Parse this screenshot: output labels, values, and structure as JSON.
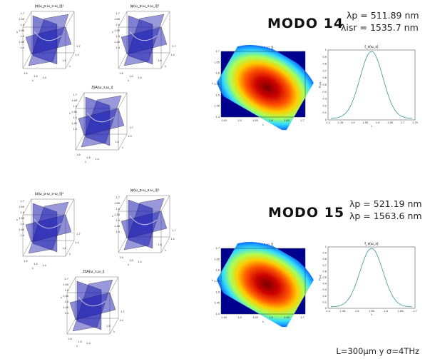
{
  "modes": [
    {
      "title": "MODO 14",
      "lambda_p": "λp = 511.89 nm",
      "lambda_2": "λisr = 1535.7 nm",
      "cube_titles": [
        "|α(ω_p-ω_s-ω_i)|²",
        "|φ(ω_p-ω_s-ω_i)|²",
        "JSA(ω_s,ω_i)"
      ],
      "heatmap_title": "f_s(ω_s,ω_i)",
      "curve_title": "f_s(ω_s)",
      "heat_xticks": [
        "1.45",
        "1.5",
        "1.55",
        "1.6",
        "1.65",
        "1.7"
      ],
      "heat_yticks": [
        "1.4",
        "1.45",
        "1.5",
        "1.55",
        "1.6",
        "1.65",
        "1.7"
      ],
      "curve_xticks": [
        "1.4",
        "1.45",
        "1.5",
        "1.55",
        "1.6",
        "1.65",
        "1.7",
        "1.75"
      ],
      "curve_yticks": [
        "0",
        "0.1",
        "0.2",
        "0.3",
        "0.4",
        "0.5",
        "0.6",
        "0.7",
        "0.8",
        "0.9",
        "1"
      ],
      "curve_ylabel": "P(ω)"
    },
    {
      "title": "MODO 15",
      "lambda_p": "λp = 521.19 nm",
      "lambda_2": "λp = 1563.6 nm",
      "cube_titles": [
        "|α(ω_p-ω_s-ω_i)|²",
        "|φ(ω_p-ω_s-ω_i)|²",
        "JSA(ω_s,ω_i)"
      ],
      "heatmap_title": "f_s(ω_s,ω_i)",
      "curve_title": "f_s(ω_s)",
      "heat_xticks": [
        "1.45",
        "1.5",
        "1.55",
        "1.6",
        "1.65",
        "1.7"
      ],
      "heat_yticks": [
        "1.4",
        "1.45",
        "1.5",
        "1.55",
        "1.6",
        "1.65",
        "1.7"
      ],
      "curve_xticks": [
        "1.4",
        "1.45",
        "1.5",
        "1.55",
        "1.6",
        "1.65",
        "1.7"
      ],
      "curve_yticks": [
        "0",
        "0.1",
        "0.2",
        "0.3",
        "0.4",
        "0.5",
        "0.6",
        "0.7",
        "0.8",
        "0.9",
        "1"
      ],
      "curve_ylabel": "P(ω)"
    }
  ],
  "footer": "L=300μm y σ=4THz",
  "colors": {
    "plane": "#1b1bb0",
    "curve": "#3a9a8a"
  }
}
